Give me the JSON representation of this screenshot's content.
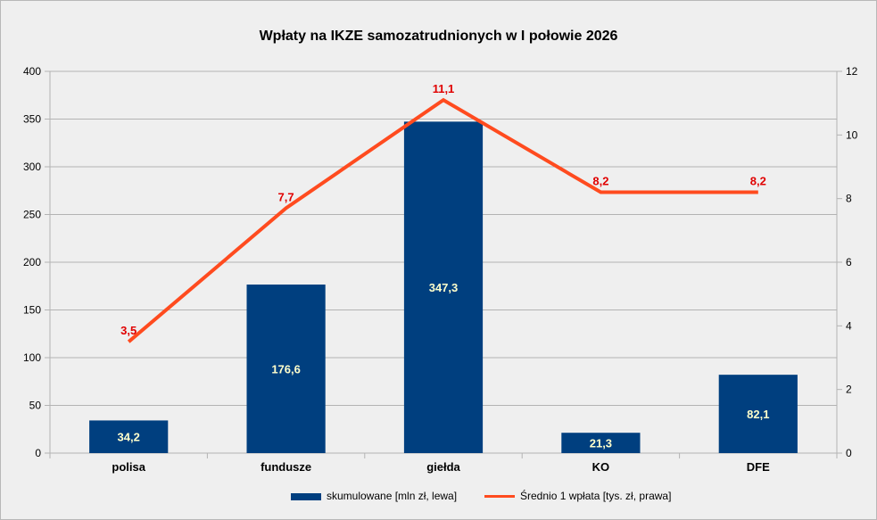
{
  "chart_data": {
    "type": "bar",
    "title": "Wpłaty na IKZE samozatrudnionych w I połowie 2026",
    "categories": [
      "polisa",
      "fundusze",
      "giełda",
      "KO",
      "DFE"
    ],
    "series": [
      {
        "name": "skumulowane [mln zł, lewa]",
        "type": "bar",
        "axis": "left",
        "values": [
          34.2,
          176.6,
          347.3,
          21.3,
          82.1
        ],
        "labels": [
          "34,2",
          "176,6",
          "347,3",
          "21,3",
          "82,1"
        ],
        "color": "#003f7f"
      },
      {
        "name": "Średnio 1 wpłata [tys. zł, prawa]",
        "type": "line",
        "axis": "right",
        "values": [
          3.5,
          7.7,
          11.1,
          8.2,
          8.2
        ],
        "labels": [
          "3,5",
          "7,7",
          "11,1",
          "8,2",
          "8,2"
        ],
        "color": "#ff4b1f"
      }
    ],
    "y_left": {
      "min": 0,
      "max": 400,
      "ticks": [
        "0",
        "50",
        "100",
        "150",
        "200",
        "250",
        "300",
        "350",
        "400"
      ]
    },
    "y_right": {
      "min": 0,
      "max": 12,
      "ticks": [
        "0",
        "2",
        "4",
        "6",
        "8",
        "10",
        "12"
      ]
    },
    "grid": true,
    "legend_position": "bottom",
    "bar_label_color": "#ffffcc",
    "line_label_color": "#e00000",
    "background_color": "#efefef"
  }
}
